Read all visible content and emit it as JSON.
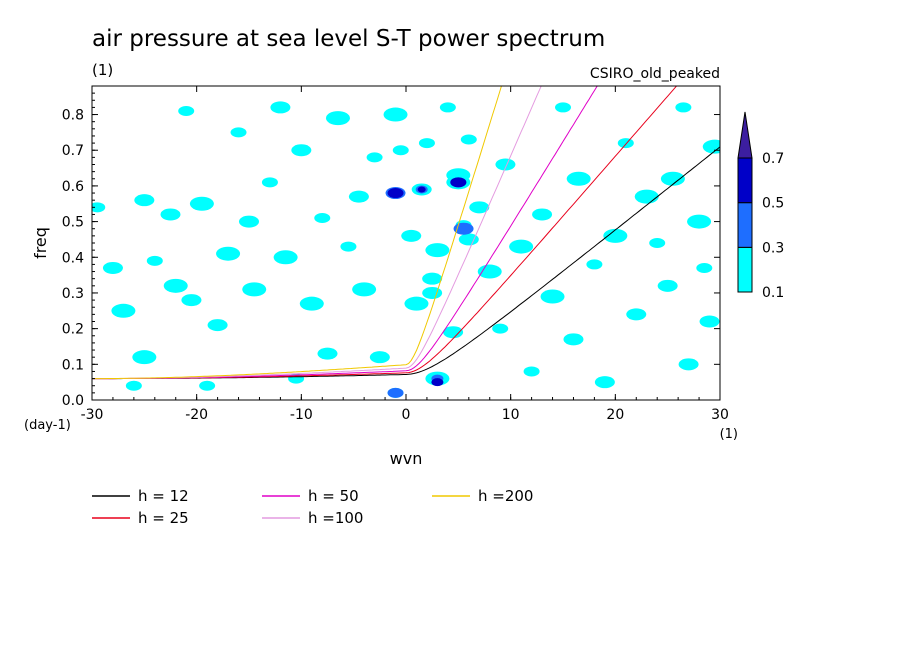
{
  "chart_data": {
    "type": "heatmap",
    "title": "air pressure at sea level S-T power spectrum",
    "subtitle_left": "(1)",
    "subtitle_right": "CSIRO_old_peaked",
    "xlabel": "wvn",
    "ylabel": "freq",
    "x_unit": "(1)",
    "y_unit": "(day-1)",
    "xlim": [
      -30,
      30
    ],
    "ylim": [
      0,
      0.88
    ],
    "x_ticks": [
      -30,
      -20,
      -10,
      0,
      10,
      20,
      30
    ],
    "x_tick_labels": [
      "-30",
      "-20",
      "-10",
      "0",
      "10",
      "20",
      "30"
    ],
    "y_ticks": [
      0,
      0.1,
      0.2,
      0.3,
      0.4,
      0.5,
      0.6,
      0.7,
      0.8
    ],
    "y_tick_labels": [
      "0.0",
      "0.1",
      "0.2",
      "0.3",
      "0.4",
      "0.5",
      "0.6",
      "0.7",
      "0.8"
    ],
    "colorbar": {
      "levels": [
        0.1,
        0.3,
        0.5,
        0.7
      ],
      "labels": [
        "0.1",
        "0.3",
        "0.5",
        "0.7"
      ],
      "colors": [
        "#00ffff",
        "#1e6eff",
        "#0000c8",
        "#3c1ea0"
      ]
    },
    "contour_blobs": [
      {
        "x": -29.5,
        "y": 0.54,
        "level": 0
      },
      {
        "x": -28,
        "y": 0.37,
        "level": 0
      },
      {
        "x": -27,
        "y": 0.25,
        "level": 0
      },
      {
        "x": -26,
        "y": 0.04,
        "level": 0
      },
      {
        "x": -25,
        "y": 0.56,
        "level": 0
      },
      {
        "x": -25,
        "y": 0.12,
        "level": 0
      },
      {
        "x": -24,
        "y": 0.39,
        "level": 0
      },
      {
        "x": -22.5,
        "y": 0.52,
        "level": 0
      },
      {
        "x": -22,
        "y": 0.32,
        "level": 0
      },
      {
        "x": -21,
        "y": 0.81,
        "level": 0
      },
      {
        "x": -20.5,
        "y": 0.28,
        "level": 0
      },
      {
        "x": -19.5,
        "y": 0.55,
        "level": 0
      },
      {
        "x": -19,
        "y": 0.04,
        "level": 0
      },
      {
        "x": -18,
        "y": 0.21,
        "level": 0
      },
      {
        "x": -17,
        "y": 0.41,
        "level": 0
      },
      {
        "x": -16,
        "y": 0.75,
        "level": 0
      },
      {
        "x": -15,
        "y": 0.5,
        "level": 0
      },
      {
        "x": -14.5,
        "y": 0.31,
        "level": 0
      },
      {
        "x": -13,
        "y": 0.61,
        "level": 0
      },
      {
        "x": -12,
        "y": 0.82,
        "level": 0
      },
      {
        "x": -11.5,
        "y": 0.4,
        "level": 0
      },
      {
        "x": -10.5,
        "y": 0.06,
        "level": 0
      },
      {
        "x": -10,
        "y": 0.7,
        "level": 0
      },
      {
        "x": -9,
        "y": 0.27,
        "level": 0
      },
      {
        "x": -8,
        "y": 0.51,
        "level": 0
      },
      {
        "x": -7.5,
        "y": 0.13,
        "level": 0
      },
      {
        "x": -6.5,
        "y": 0.79,
        "level": 0
      },
      {
        "x": -5.5,
        "y": 0.43,
        "level": 0
      },
      {
        "x": -4.5,
        "y": 0.57,
        "level": 0
      },
      {
        "x": -4,
        "y": 0.31,
        "level": 0
      },
      {
        "x": -3,
        "y": 0.68,
        "level": 0
      },
      {
        "x": -2.5,
        "y": 0.12,
        "level": 0
      },
      {
        "x": -1,
        "y": 0.8,
        "level": 0
      },
      {
        "x": -0.5,
        "y": 0.7,
        "level": 0
      },
      {
        "x": 0.5,
        "y": 0.46,
        "level": 0
      },
      {
        "x": 1,
        "y": 0.27,
        "level": 0
      },
      {
        "x": 2,
        "y": 0.72,
        "level": 0
      },
      {
        "x": 2.5,
        "y": 0.3,
        "level": 0
      },
      {
        "x": 3,
        "y": 0.42,
        "level": 0
      },
      {
        "x": 4,
        "y": 0.82,
        "level": 0
      },
      {
        "x": 4.5,
        "y": 0.19,
        "level": 0
      },
      {
        "x": 5,
        "y": 0.63,
        "level": 0
      },
      {
        "x": 6,
        "y": 0.73,
        "level": 0
      },
      {
        "x": 7,
        "y": 0.54,
        "level": 0
      },
      {
        "x": 8,
        "y": 0.36,
        "level": 0
      },
      {
        "x": 9,
        "y": 0.2,
        "level": 0
      },
      {
        "x": 9.5,
        "y": 0.66,
        "level": 0
      },
      {
        "x": 11,
        "y": 0.43,
        "level": 0
      },
      {
        "x": 12,
        "y": 0.08,
        "level": 0
      },
      {
        "x": 13,
        "y": 0.52,
        "level": 0
      },
      {
        "x": 14,
        "y": 0.29,
        "level": 0
      },
      {
        "x": 15,
        "y": 0.82,
        "level": 0
      },
      {
        "x": 16,
        "y": 0.17,
        "level": 0
      },
      {
        "x": 16.5,
        "y": 0.62,
        "level": 0
      },
      {
        "x": 18,
        "y": 0.38,
        "level": 0
      },
      {
        "x": 19,
        "y": 0.05,
        "level": 0
      },
      {
        "x": 20,
        "y": 0.46,
        "level": 0
      },
      {
        "x": 21,
        "y": 0.72,
        "level": 0
      },
      {
        "x": 22,
        "y": 0.24,
        "level": 0
      },
      {
        "x": 23,
        "y": 0.57,
        "level": 0
      },
      {
        "x": 24,
        "y": 0.44,
        "level": 0
      },
      {
        "x": 25,
        "y": 0.32,
        "level": 0
      },
      {
        "x": 25.5,
        "y": 0.62,
        "level": 0
      },
      {
        "x": 26.5,
        "y": 0.82,
        "level": 0
      },
      {
        "x": 27,
        "y": 0.1,
        "level": 0
      },
      {
        "x": 28,
        "y": 0.5,
        "level": 0
      },
      {
        "x": 28.5,
        "y": 0.37,
        "level": 0
      },
      {
        "x": 29,
        "y": 0.22,
        "level": 0
      },
      {
        "x": 29.5,
        "y": 0.71,
        "level": 0
      },
      {
        "x": -1,
        "y": 0.58,
        "level": 0
      },
      {
        "x": 1.5,
        "y": 0.59,
        "level": 0
      },
      {
        "x": 5,
        "y": 0.61,
        "level": 0
      },
      {
        "x": 5.5,
        "y": 0.49,
        "level": 0
      },
      {
        "x": 2.5,
        "y": 0.34,
        "level": 0
      },
      {
        "x": 3,
        "y": 0.06,
        "level": 0
      },
      {
        "x": -1,
        "y": 0.02,
        "level": 0
      },
      {
        "x": 6,
        "y": 0.45,
        "level": 0
      },
      {
        "x": -1,
        "y": 0.58,
        "level": 1
      },
      {
        "x": 1.5,
        "y": 0.59,
        "level": 1
      },
      {
        "x": 5,
        "y": 0.61,
        "level": 1
      },
      {
        "x": 5.5,
        "y": 0.48,
        "level": 1
      },
      {
        "x": 3,
        "y": 0.06,
        "level": 1
      },
      {
        "x": -1,
        "y": 0.02,
        "level": 1
      },
      {
        "x": -1,
        "y": 0.58,
        "level": 2
      },
      {
        "x": 1.5,
        "y": 0.59,
        "level": 2
      },
      {
        "x": 3,
        "y": 0.05,
        "level": 2
      },
      {
        "x": 5,
        "y": 0.61,
        "level": 2
      }
    ],
    "series": [
      {
        "name": "h = 12",
        "h": 12,
        "color": "#000000"
      },
      {
        "name": "h = 25",
        "h": 25,
        "color": "#e8001c"
      },
      {
        "name": "h = 50",
        "h": 50,
        "color": "#e000c8"
      },
      {
        "name": "h =100",
        "h": 100,
        "color": "#e49be0"
      },
      {
        "name": "h =200",
        "h": 200,
        "color": "#f0c800"
      }
    ],
    "grid": false,
    "legend_position": "bottom-left"
  }
}
